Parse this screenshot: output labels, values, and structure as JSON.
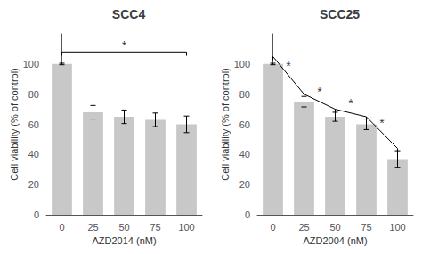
{
  "chart_data": [
    {
      "type": "bar",
      "title": "SCC4",
      "categories": [
        "0",
        "25",
        "50",
        "75",
        "100"
      ],
      "values": [
        100,
        68,
        65,
        63,
        60
      ],
      "errors": [
        0.5,
        4.5,
        4.5,
        4.5,
        5.5
      ],
      "xlabel": "AZD2014 (nM)",
      "ylabel": "Cell viability (% of control)",
      "ylim": [
        0,
        120
      ],
      "yticks": [
        0,
        20,
        40,
        60,
        80,
        100
      ],
      "color": "#c8c8c8",
      "grid": false,
      "annotations": [
        {
          "text": "*",
          "x": [
            "0",
            "100"
          ],
          "y": [
            108,
            108
          ]
        }
      ]
    },
    {
      "type": "bar",
      "title": "SCC25",
      "categories": [
        "0",
        "25",
        "50",
        "75",
        "100"
      ],
      "values": [
        100,
        75,
        65,
        60,
        37
      ],
      "errors": [
        0.5,
        3.5,
        3.0,
        3.5,
        5.5
      ],
      "xlabel": "AZD2004 (nM)",
      "ylabel": "Cell viability (% of control)",
      "ylim": [
        0,
        120
      ],
      "yticks": [
        0,
        20,
        40,
        60,
        80,
        100
      ],
      "color": "#c8c8c8",
      "grid": false,
      "annotations": [
        {
          "text": "*",
          "x": [
            "0",
            "25"
          ],
          "y": [
            105,
            80
          ]
        },
        {
          "text": "*",
          "x": [
            "25",
            "50"
          ],
          "y": [
            80,
            70
          ]
        },
        {
          "text": "*",
          "x": [
            "50",
            "75"
          ],
          "y": [
            70,
            65
          ]
        },
        {
          "text": "*",
          "x": [
            "75",
            "100"
          ],
          "y": [
            65,
            44
          ]
        }
      ]
    }
  ]
}
